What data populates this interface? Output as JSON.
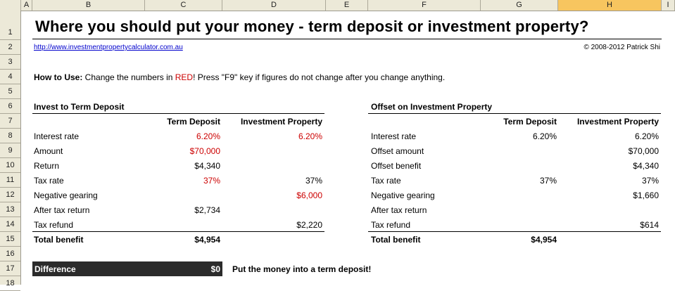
{
  "columns": [
    "A",
    "B",
    "C",
    "D",
    "E",
    "F",
    "G",
    "H",
    "I"
  ],
  "rows": [
    "1",
    "2",
    "3",
    "4",
    "5",
    "6",
    "7",
    "8",
    "9",
    "10",
    "11",
    "12",
    "13",
    "14",
    "15",
    "16",
    "17",
    "18"
  ],
  "title": "Where you should put your money - term deposit or investment property?",
  "link": "http://www.investmentpropertycalculator.com.au",
  "copyright": "© 2008-2012 Patrick Shi",
  "howto": {
    "label": "How to Use:",
    "text_before": " Change the numbers in ",
    "red_word": "RED",
    "text_after": "! Press \"F9\" key if figures do not change after you change anything."
  },
  "left": {
    "section_title": "Invest to Term Deposit",
    "col1": "Term Deposit",
    "col2": "Investment Property",
    "rows": [
      {
        "label": "Interest rate",
        "v1": "6.20%",
        "v2": "6.20%"
      },
      {
        "label": "Amount",
        "v1": "$70,000",
        "v2": ""
      },
      {
        "label": "Return",
        "v1": "$4,340",
        "v2": ""
      },
      {
        "label": "Tax rate",
        "v1": "37%",
        "v2": "37%"
      },
      {
        "label": "Negative gearing",
        "v1": "",
        "v2": "$6,000"
      },
      {
        "label": "After tax return",
        "v1": "$2,734",
        "v2": ""
      },
      {
        "label": "Tax refund",
        "v1": "",
        "v2": "$2,220"
      }
    ],
    "total_label": "Total benefit",
    "total_value": "$4,954"
  },
  "right": {
    "section_title": "Offset on Investment Property",
    "col1": "Term Deposit",
    "col2": "Investment Property",
    "rows": [
      {
        "label": "Interest rate",
        "v1": "6.20%",
        "v2": "6.20%"
      },
      {
        "label": "Offset amount",
        "v1": "",
        "v2": "$70,000"
      },
      {
        "label": "Offset benefit",
        "v1": "",
        "v2": "$4,340"
      },
      {
        "label": "Tax rate",
        "v1": "37%",
        "v2": "37%"
      },
      {
        "label": "Negative gearing",
        "v1": "",
        "v2": "$1,660"
      },
      {
        "label": "After tax return",
        "v1": "",
        "v2": ""
      },
      {
        "label": "Tax refund",
        "v1": "",
        "v2": "$614"
      }
    ],
    "total_label": "Total benefit",
    "total_value": "$4,954"
  },
  "difference": {
    "label": "Difference",
    "value": "$0",
    "advice": "Put the money into a term deposit!"
  },
  "colors": {
    "input_red": "#cc0000",
    "link_blue": "#0000cc",
    "header_bg": "#ece9d8",
    "selected_col": "#f7c55f",
    "diff_bar": "#2b2b2b"
  }
}
